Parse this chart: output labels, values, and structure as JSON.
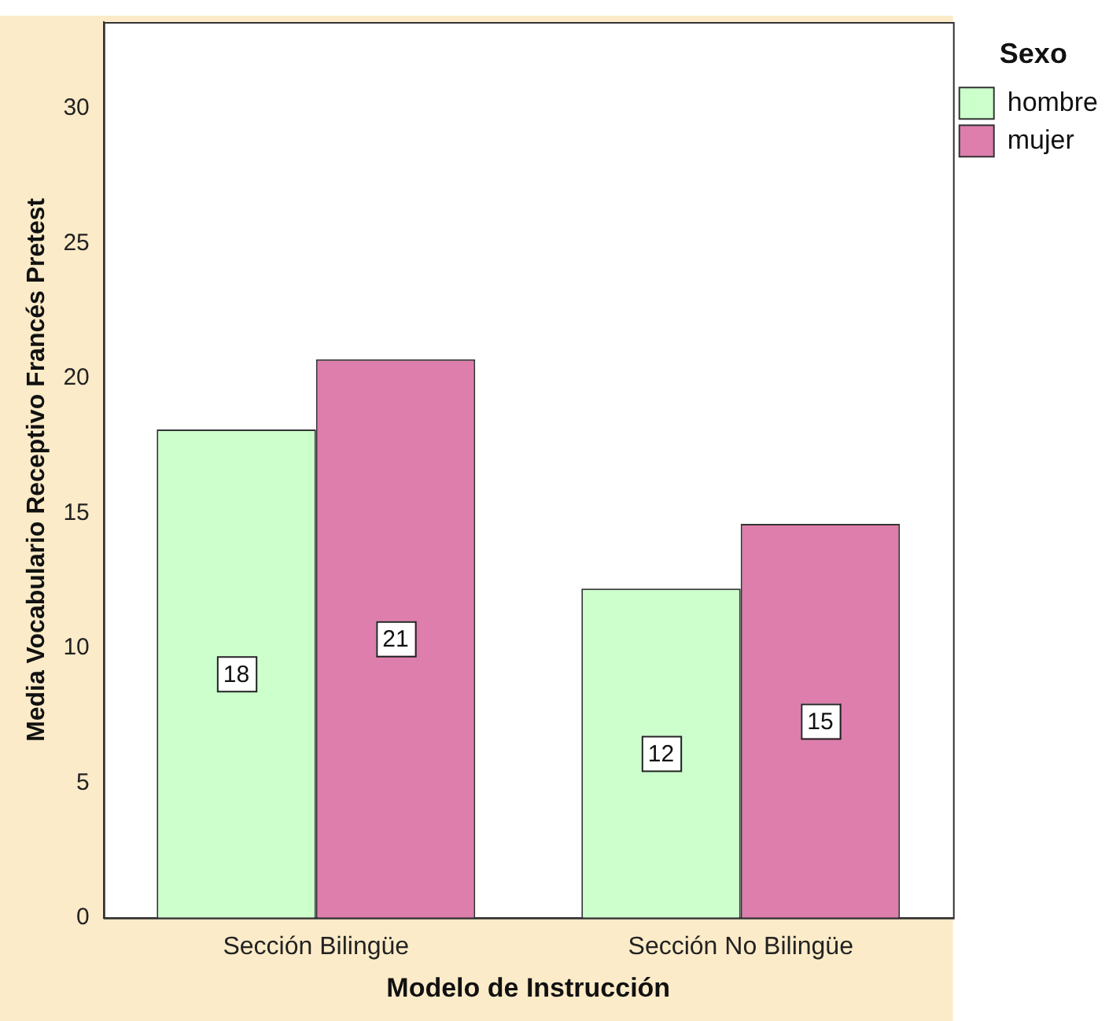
{
  "chart_data": {
    "type": "bar",
    "xlabel": "Modelo de Instrucción",
    "ylabel": "Media Vocabulario Receptivo Francés Pretest",
    "legend_title": "Sexo",
    "legend": "top right",
    "grid": false,
    "categories": [
      "Sección Bilingüe",
      "Sección No Bilingüe"
    ],
    "series": [
      {
        "name": "hombre",
        "color": "#ccffcc",
        "values": [
          18.1,
          12.2
        ],
        "value_labels": [
          "18",
          "12"
        ]
      },
      {
        "name": "mujer",
        "color": "#dd7eac",
        "values": [
          20.7,
          14.6
        ],
        "value_labels": [
          "21",
          "15"
        ]
      }
    ],
    "ylim": [
      0,
      33.2
    ],
    "yticks": [
      0,
      5,
      10,
      15,
      20,
      25,
      30
    ]
  }
}
